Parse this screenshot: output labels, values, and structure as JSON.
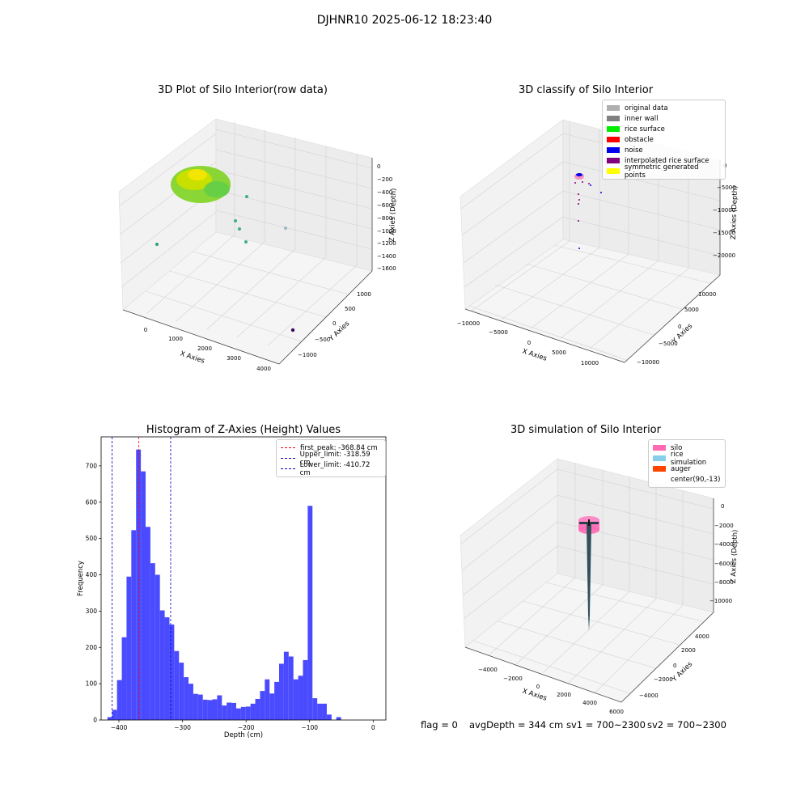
{
  "suptitle": "DJHNR10 2025-06-12 18:23:40",
  "plot1": {
    "title": "3D Plot of Silo Interior(row data)",
    "xlabel": "X Axies",
    "ylabel": "Y Axies",
    "zlabel": "Z Axies (Depth)",
    "xticks": [
      "0",
      "1000",
      "2000",
      "3000",
      "4000"
    ],
    "yticks": [
      "−1000",
      "−500",
      "0",
      "500",
      "1000"
    ],
    "zticks": [
      "0",
      "−200",
      "−400",
      "−600",
      "−800",
      "−1000",
      "−1200",
      "−1400",
      "−1600"
    ]
  },
  "plot2": {
    "title": "3D classify of Silo Interior",
    "xlabel": "X Axies",
    "ylabel": "Y Axies",
    "zlabel": "Z Axies (Depth)",
    "xticks": [
      "−10000",
      "−5000",
      "0",
      "5000",
      "10000"
    ],
    "yticks": [
      "−10000",
      "−5000",
      "0",
      "5000",
      "10000"
    ],
    "zticks": [
      "0",
      "−5000",
      "−10000",
      "−15000",
      "−20000"
    ],
    "legend": [
      {
        "label": "original data",
        "color": "#b0b0b0"
      },
      {
        "label": "inner wall",
        "color": "#808080"
      },
      {
        "label": "rice surface",
        "color": "#00ee00"
      },
      {
        "label": "obstacle",
        "color": "#ff0000"
      },
      {
        "label": "noise",
        "color": "#0000ee"
      },
      {
        "label": "interpolated rice surface",
        "color": "#800080"
      },
      {
        "label": "symmetric generated points",
        "color": "#ffff00"
      }
    ]
  },
  "plot3": {
    "title": "3D simulation of Silo Interior",
    "xlabel": "X Axies",
    "ylabel": "Y Axies",
    "zlabel": "Z Axies (Depth)",
    "xticks": [
      "−4000",
      "−2000",
      "0",
      "2000",
      "4000",
      "6000"
    ],
    "yticks": [
      "−4000",
      "−2000",
      "0",
      "2000",
      "4000"
    ],
    "zticks": [
      "0",
      "−2000",
      "−4000",
      "−6000",
      "−8000",
      "−10000"
    ],
    "legend": [
      {
        "label": "silo",
        "color": "#ff69b4"
      },
      {
        "label": "rice simulation",
        "color": "#87ceeb"
      },
      {
        "label": "auger",
        "color": "#ff4500"
      },
      {
        "label": "center(90,-13)",
        "color": ""
      }
    ]
  },
  "status": {
    "flag": "flag = 0",
    "avg_depth": "avgDepth = 344 cm",
    "sv1": "sv1 = 700~2300",
    "sv2": "sv2 = 700~2300"
  },
  "chart_data": [
    {
      "type": "bar",
      "title": "Histogram of Z-Axies (Height) Values",
      "xlabel": "Depth (cm)",
      "ylabel": "Frequency",
      "xlim": [
        -428,
        20
      ],
      "ylim": [
        0,
        780
      ],
      "bin_width": 7.5,
      "bin_start": -418,
      "color": "#4a4aff",
      "values": [
        8,
        28,
        110,
        228,
        395,
        523,
        745,
        685,
        532,
        432,
        400,
        302,
        283,
        263,
        190,
        158,
        118,
        100,
        72,
        70,
        56,
        55,
        57,
        68,
        40,
        48,
        47,
        32,
        36,
        37,
        45,
        58,
        80,
        112,
        73,
        105,
        155,
        188,
        175,
        112,
        122,
        165,
        590,
        60,
        45,
        45,
        15,
        0,
        8
      ],
      "xticks": [
        -400,
        -300,
        -200,
        -100,
        0
      ],
      "xtick_labels": [
        "−400",
        "−300",
        "−200",
        "−100",
        "0"
      ],
      "yticks": [
        0,
        100,
        200,
        300,
        400,
        500,
        600,
        700
      ],
      "ytick_labels": [
        "0",
        "100",
        "200",
        "300",
        "400",
        "500",
        "600",
        "700"
      ],
      "lines": [
        {
          "label": "first_peak: -368.84 cm",
          "x": -368.84,
          "color": "#ff0000"
        },
        {
          "label": "Upper_limit: -318.59 cm",
          "x": -318.59,
          "color": "#0000cc"
        },
        {
          "label": "Lower_limit: -410.72 cm",
          "x": -410.72,
          "color": "#0000cc"
        }
      ],
      "legend_position": "top-right"
    }
  ]
}
